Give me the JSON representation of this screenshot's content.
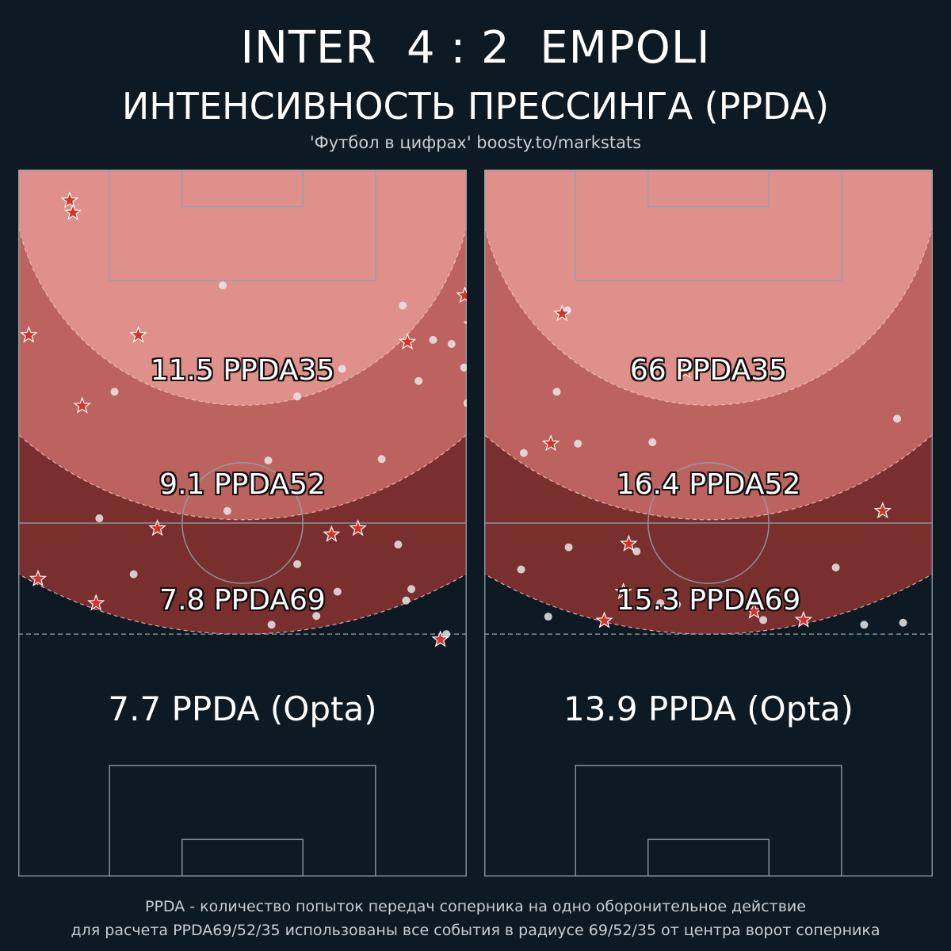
{
  "header": {
    "home_team": "INTER",
    "score": "4 : 2",
    "away_team": "EMPOLI",
    "subtitle": "ИНТЕНСИВНОСТЬ ПРЕССИНГА (PPDA)",
    "credit": "'Футбол в цифрах' boosty.to/markstats"
  },
  "footer": {
    "line1": "PPDA - количество попыток передач соперника на одно оборонительное действие",
    "line2": "для расчета PPDA69/52/35 использованы все события в радиусе 69/52/35 от центра ворот соперника"
  },
  "colors": {
    "background": "#0e1a23",
    "zone35": "#e0908a",
    "zone52": "#bd635f",
    "zone69": "#7a2f2f",
    "star_fill": "#d0342c",
    "dot_fill": "#e8e8e8",
    "pitch_line": "#8fa3ab"
  },
  "chart_data": [
    {
      "type": "scatter",
      "team": "INTER",
      "zones": [
        {
          "label": "11.5 PPDA35",
          "ppda": 11.5,
          "radius": 35
        },
        {
          "label": "9.1 PPDA52",
          "ppda": 9.1,
          "radius": 52
        },
        {
          "label": "7.8 PPDA69",
          "ppda": 7.8,
          "radius": 69
        }
      ],
      "opta_label": "7.7 PPDA (Opta)",
      "opta_ppda": 7.7,
      "defensive_actions": [
        [
          4.6,
          7.8
        ],
        [
          6.4,
          8.3
        ],
        [
          18.2,
          73.3
        ],
        [
          18.7,
          67.7
        ],
        [
          19.6,
          75.3
        ],
        [
          20.1,
          71.8
        ],
        [
          22.9,
          79.4
        ],
        [
          23.0,
          68.8
        ],
        [
          24.6,
          1.6
        ],
        [
          24.6,
          18.2
        ],
        [
          25.6,
          59.0
        ],
        [
          35.1,
          9.7
        ],
        [
          53.3,
          51.5
        ],
        [
          53.3,
          21.1
        ],
        [
          53.5,
          78.3
        ],
        [
          54.2,
          47.5
        ],
        [
          60.8,
          3.0
        ],
        [
          64.4,
          11.8
        ],
        [
          65.2,
          79.5
        ],
        [
          69.8,
          64.0
        ]
      ],
      "opponent_passes": [
        [
          60.1,
          17.5
        ],
        [
          57.9,
          78.7
        ],
        [
          66.3,
          45.2
        ],
        [
          61.3,
          72.5
        ],
        [
          64.0,
          58.8
        ],
        [
          67.6,
          38.4
        ],
        [
          58.6,
          42.3
        ],
        [
          59.8,
          80.3
        ],
        [
          62.7,
          48.4
        ],
        [
          62.3,
          59.6
        ],
        [
          55.7,
          57.6
        ],
        [
          69.0,
          64.9
        ],
        [
          50.7,
          31.7
        ],
        [
          51.8,
          12.3
        ],
        [
          43.2,
          37.9
        ],
        [
          43.0,
          55.1
        ],
        [
          40.3,
          70.6
        ],
        [
          38.4,
          78.7
        ],
        [
          34.7,
          68.1
        ],
        [
          34.0,
          78.7
        ],
        [
          33.7,
          42.3
        ],
        [
          33.0,
          14.6
        ],
        [
          31.4,
          60.7
        ],
        [
          29.6,
          49.1
        ],
        [
          29.4,
          67.6
        ],
        [
          25.9,
          65.7
        ],
        [
          25.3,
          62.9
        ],
        [
          21.7,
          70.1
        ],
        [
          20.2,
          58.3
        ],
        [
          19.5,
          81.0
        ],
        [
          18.3,
          78.7
        ],
        [
          17.2,
          31.0
        ]
      ]
    },
    {
      "type": "scatter",
      "team": "EMPOLI",
      "zones": [
        {
          "label": "66 PPDA35",
          "ppda": 66,
          "radius": 35
        },
        {
          "label": "16.4 PPDA52",
          "ppda": 16.4,
          "radius": 52
        },
        {
          "label": "15.3 PPDA69",
          "ppda": 15.3,
          "radius": 69
        }
      ],
      "opta_label": "13.9 PPDA (Opta)",
      "opta_ppda": 13.9,
      "defensive_actions": [
        [
          21.4,
          11.8
        ],
        [
          29.9,
          30.5
        ],
        [
          40.7,
          10.1
        ],
        [
          50.7,
          60.4
        ],
        [
          55.6,
          21.9
        ],
        [
          62.7,
          21.1
        ],
        [
          65.6,
          40.9
        ],
        [
          66.9,
          48.4
        ],
        [
          67.0,
          18.2
        ],
        [
          67.4,
          74.7
        ]
      ],
      "opponent_passes": [
        [
          66.9,
          42.3
        ],
        [
          67.6,
          57.6
        ],
        [
          67.3,
          63.5
        ],
        [
          66.4,
          9.7
        ],
        [
          64.6,
          29.2
        ],
        [
          64.4,
          26.7
        ],
        [
          62.7,
          31.8
        ],
        [
          60.1,
          71.0
        ],
        [
          59.1,
          53.3
        ],
        [
          59.4,
          5.6
        ],
        [
          56.7,
          23.1
        ],
        [
          56.1,
          12.8
        ],
        [
          45.9,
          24.6
        ],
        [
          42.1,
          6.0
        ],
        [
          40.7,
          14.2
        ],
        [
          40.5,
          25.5
        ],
        [
          37.0,
          62.6
        ],
        [
          34.7,
          79.6
        ],
        [
          33.0,
          11.0
        ],
        [
          20.9,
          12.6
        ],
        [
          17.2,
          80.8
        ]
      ]
    }
  ]
}
